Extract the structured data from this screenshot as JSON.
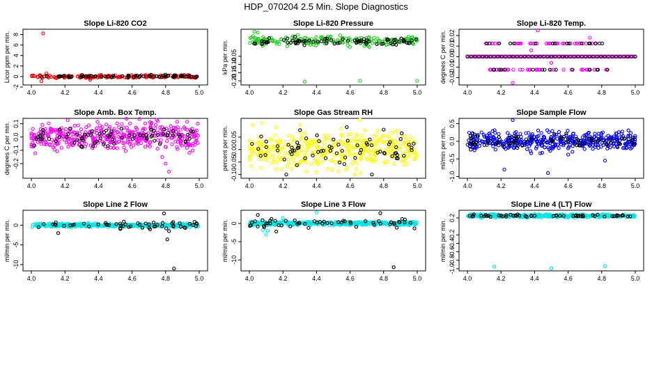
{
  "figure": {
    "title": "HDP_070204  2.5 Min. Slope Diagnostics",
    "colors": {
      "black": "#000000",
      "red": "#ff0000",
      "green": "#22cc22",
      "magenta": "#ff00ff",
      "yellow": "#ffff00",
      "blue": "#0000ff",
      "cyan": "#00e5e5"
    }
  },
  "chart_data": [
    {
      "type": "scatter",
      "title": "Slope Li-820 CO2",
      "ylabel": "Licor ppm per min.",
      "xlabel": "",
      "xlim": [
        3.95,
        5.05
      ],
      "ylim": [
        -1.6,
        9.0
      ],
      "xticks": [
        "4.0",
        "4.2",
        "4.4",
        "4.6",
        "4.8",
        "5.0"
      ],
      "xtick_values": [
        4.0,
        4.2,
        4.4,
        4.6,
        4.8,
        5.0
      ],
      "yticks": [
        "-2",
        "0",
        "2",
        "4",
        "6",
        "8"
      ],
      "ytick_values": [
        -2,
        0,
        2,
        4,
        6,
        8
      ],
      "series": [
        {
          "name": "all",
          "color": "red",
          "band_center": 0.0,
          "band_spread": 0.25,
          "density": 170,
          "outliers": [
            [
              4.07,
              8.2
            ],
            [
              4.06,
              -0.9
            ],
            [
              4.09,
              0.6
            ],
            [
              4.35,
              -0.6
            ]
          ]
        },
        {
          "name": "black",
          "color": "black",
          "band_center": 0.05,
          "band_spread": 0.2,
          "density": 70,
          "outliers": []
        }
      ]
    },
    {
      "type": "scatter",
      "title": "Slope Li-820 Pressure",
      "ylabel": "kPa per min.",
      "xlabel": "",
      "xlim": [
        3.95,
        5.05
      ],
      "ylim": [
        -0.225,
        0.115
      ],
      "xticks": [
        "4.0",
        "4.2",
        "4.4",
        "4.6",
        "4.8",
        "5.0"
      ],
      "xtick_values": [
        4.0,
        4.2,
        4.4,
        4.6,
        4.8,
        5.0
      ],
      "yticks": [
        "-0.20",
        "-0.15",
        "-0.10",
        "-0.05"
      ],
      "ytick_values": [
        -0.2,
        -0.15,
        -0.1,
        -0.05
      ],
      "series": [
        {
          "name": "all",
          "color": "green",
          "band_center": 0.045,
          "band_spread": 0.025,
          "density": 200,
          "outliers": [
            [
              4.33,
              -0.205
            ],
            [
              4.66,
              -0.2
            ],
            [
              5.0,
              -0.2
            ],
            [
              4.03,
              0.1
            ],
            [
              4.05,
              0.095
            ]
          ]
        },
        {
          "name": "black",
          "color": "black",
          "band_center": 0.04,
          "band_spread": 0.02,
          "density": 80,
          "outliers": []
        }
      ]
    },
    {
      "type": "scatter",
      "title": "Slope Li-820 Temp.",
      "ylabel": "degrees C per min.",
      "xlabel": "",
      "xlim": [
        3.95,
        5.05
      ],
      "ylim": [
        -0.027,
        0.026
      ],
      "xticks": [
        "4.0",
        "4.2",
        "4.4",
        "4.6",
        "4.8",
        "5.0"
      ],
      "xtick_values": [
        4.0,
        4.2,
        4.4,
        4.6,
        4.8,
        5.0
      ],
      "yticks": [
        "-0.02",
        "-0.01",
        "0.00",
        "0.01",
        "0.02"
      ],
      "ytick_values": [
        -0.02,
        -0.01,
        0.0,
        0.01,
        0.02
      ],
      "levels": [
        -0.0125,
        0.0,
        0.0125
      ],
      "series": [
        {
          "name": "all",
          "color": "magenta",
          "level_points": 120,
          "outliers": [
            [
              4.42,
              0.025
            ],
            [
              4.27,
              -0.025
            ],
            [
              4.73,
              0.018
            ],
            [
              4.5,
              -0.006
            ],
            [
              4.38,
              0.006
            ]
          ]
        },
        {
          "name": "black",
          "color": "black",
          "level_points": 45,
          "outliers": []
        }
      ]
    },
    {
      "type": "scatter",
      "title": "Slope Amb. Box Temp.",
      "ylabel": "degrees C per min.",
      "xlabel": "",
      "xlim": [
        3.95,
        5.05
      ],
      "ylim": [
        -0.31,
        0.14
      ],
      "xticks": [
        "4.0",
        "4.2",
        "4.4",
        "4.6",
        "4.8",
        "5.0"
      ],
      "xtick_values": [
        4.0,
        4.2,
        4.4,
        4.6,
        4.8,
        5.0
      ],
      "yticks": [
        "-0.2",
        "-0.1",
        "0.0",
        "0.1"
      ],
      "ytick_values": [
        -0.2,
        -0.1,
        0.0,
        0.1
      ],
      "series": [
        {
          "name": "all",
          "color": "magenta",
          "band_center": 0.0,
          "band_spread": 0.085,
          "density": 420,
          "outliers": [
            [
              4.8,
              -0.2
            ],
            [
              4.82,
              -0.26
            ],
            [
              4.78,
              -0.15
            ]
          ]
        },
        {
          "name": "black",
          "color": "black",
          "band_center": 0.0,
          "band_spread": 0.06,
          "density": 75,
          "outliers": []
        }
      ]
    },
    {
      "type": "scatter",
      "title": "Slope Gas Stream RH",
      "ylabel": "percent per min.",
      "xlabel": "",
      "xlim": [
        3.95,
        5.05
      ],
      "ylim": [
        -0.115,
        0.125
      ],
      "xticks": [
        "4.0",
        "4.2",
        "4.4",
        "4.6",
        "4.8",
        "5.0"
      ],
      "xtick_values": [
        4.0,
        4.2,
        4.4,
        4.6,
        4.8,
        5.0
      ],
      "yticks": [
        "-0.10",
        "-0.05",
        "0.00",
        "0.05"
      ],
      "ytick_values": [
        -0.1,
        -0.05,
        0.0,
        0.05
      ],
      "series": [
        {
          "name": "all",
          "color": "yellow",
          "band_center": 0.0,
          "band_spread": 0.06,
          "density": 420,
          "outliers": [
            [
              4.66,
              0.12
            ],
            [
              4.02,
              0.1
            ],
            [
              4.63,
              -0.1
            ]
          ]
        },
        {
          "name": "black",
          "color": "black",
          "band_center": 0.0,
          "band_spread": 0.05,
          "density": 70,
          "outliers": [
            [
              4.8,
              0.08
            ],
            [
              4.58,
              0.09
            ],
            [
              4.22,
              -0.1
            ],
            [
              4.73,
              -0.1
            ]
          ]
        }
      ]
    },
    {
      "type": "scatter",
      "title": "Slope Sample Flow",
      "ylabel": "ml/min per min.",
      "xlabel": "",
      "xlim": [
        3.95,
        5.05
      ],
      "ylim": [
        -1.05,
        0.65
      ],
      "xticks": [
        "4.0",
        "4.2",
        "4.4",
        "4.6",
        "4.8",
        "5.0"
      ],
      "xtick_values": [
        4.0,
        4.2,
        4.4,
        4.6,
        4.8,
        5.0
      ],
      "yticks": [
        "-1.0",
        "-0.5",
        "0.0",
        "0.5"
      ],
      "ytick_values": [
        -1.0,
        -0.5,
        0.0,
        0.5
      ],
      "series": [
        {
          "name": "all",
          "color": "blue",
          "band_center": 0.0,
          "band_spread": 0.22,
          "density": 430,
          "outliers": [
            [
              4.27,
              0.6
            ],
            [
              4.22,
              -0.8
            ],
            [
              4.82,
              -0.55
            ],
            [
              4.48,
              -0.9
            ]
          ]
        },
        {
          "name": "black",
          "color": "black",
          "band_center": 0.0,
          "band_spread": 0.15,
          "density": 75,
          "outliers": []
        }
      ]
    },
    {
      "type": "scatter",
      "title": "Slope Line 2 Flow",
      "ylabel": "ml/min per min.",
      "xlabel": "",
      "xlim": [
        3.95,
        5.05
      ],
      "ylim": [
        -11.6,
        3.8
      ],
      "xticks": [
        "4.0",
        "4.2",
        "4.4",
        "4.6",
        "4.8",
        "5.0"
      ],
      "xtick_values": [
        4.0,
        4.2,
        4.4,
        4.6,
        4.8,
        5.0
      ],
      "yticks": [
        "-10",
        "-5",
        "0"
      ],
      "ytick_values": [
        -10,
        -5,
        0
      ],
      "series": [
        {
          "name": "all",
          "color": "cyan",
          "band_center": 0.0,
          "band_spread": 0.35,
          "density": 380,
          "outliers": []
        },
        {
          "name": "black",
          "color": "black",
          "band_center": 0.0,
          "band_spread": 0.8,
          "density": 55,
          "outliers": [
            [
              4.79,
              3.0
            ],
            [
              4.81,
              -3.6
            ],
            [
              4.85,
              -11.0
            ],
            [
              4.82,
              -1.5
            ],
            [
              4.16,
              -2.0
            ]
          ]
        }
      ]
    },
    {
      "type": "scatter",
      "title": "Slope Line 3 Flow",
      "ylabel": "ml/min per min.",
      "xlabel": "",
      "xlim": [
        3.95,
        5.05
      ],
      "ylim": [
        -13.0,
        3.6
      ],
      "xticks": [
        "4.0",
        "4.2",
        "4.4",
        "4.6",
        "4.8",
        "5.0"
      ],
      "xtick_values": [
        4.0,
        4.2,
        4.4,
        4.6,
        4.8,
        5.0
      ],
      "yticks": [
        "-10",
        "-5",
        "0"
      ],
      "ytick_values": [
        -10,
        -5,
        0
      ],
      "series": [
        {
          "name": "all",
          "color": "cyan",
          "band_center": 0.0,
          "band_spread": 0.4,
          "density": 380,
          "outliers": [
            [
              4.1,
              -3.0
            ],
            [
              4.11,
              -2.0
            ],
            [
              4.08,
              -1.8
            ],
            [
              4.2,
              1.5
            ],
            [
              4.4,
              3.0
            ]
          ]
        },
        {
          "name": "black",
          "color": "black",
          "band_center": 0.0,
          "band_spread": 0.9,
          "density": 55,
          "outliers": [
            [
              4.78,
              2.8
            ],
            [
              4.86,
              -12.0
            ],
            [
              4.05,
              2.3
            ],
            [
              4.16,
              -2.2
            ]
          ]
        }
      ]
    },
    {
      "type": "scatter",
      "title": "Slope Line 4 (LT) Flow",
      "ylabel": "ml/min per min.",
      "xlabel": "",
      "xlim": [
        3.95,
        5.05
      ],
      "ylim": [
        -1.05,
        0.38
      ],
      "xticks": [
        "4.0",
        "4.2",
        "4.4",
        "4.6",
        "4.8",
        "5.0"
      ],
      "xtick_values": [
        4.0,
        4.2,
        4.4,
        4.6,
        4.8,
        5.0
      ],
      "yticks": [
        "-1.0",
        "-0.8",
        "-0.6",
        "-0.4",
        "-0.2",
        "0.2"
      ],
      "ytick_values": [
        -1.0,
        -0.8,
        -0.6,
        -0.4,
        -0.2,
        0.2
      ],
      "series": [
        {
          "name": "all",
          "color": "cyan",
          "band_center": 0.25,
          "band_spread": 0.03,
          "density": 380,
          "outliers": [
            [
              4.16,
              -0.95
            ],
            [
              4.5,
              -0.99
            ],
            [
              4.82,
              -0.94
            ]
          ]
        },
        {
          "name": "black",
          "color": "black",
          "band_center": 0.25,
          "band_spread": 0.025,
          "density": 55,
          "outliers": []
        }
      ]
    }
  ]
}
